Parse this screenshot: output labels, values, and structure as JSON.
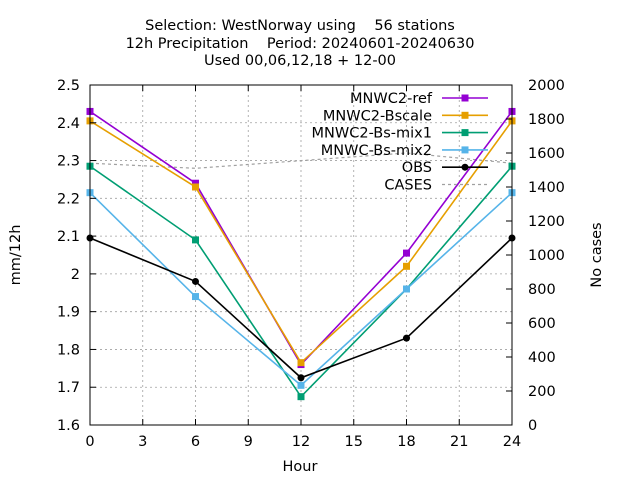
{
  "title": {
    "line1": "Selection: WestNorway using    56 stations",
    "line2": "12h Precipitation    Period: 20240601-20240630",
    "line3": "Used 00,06,12,18 + 12-00"
  },
  "chart_data": {
    "type": "line",
    "xlabel": "Hour",
    "ylabel": "mm/12h",
    "y2label": "No cases",
    "xlim": [
      0,
      24
    ],
    "ylim": [
      1.6,
      2.5
    ],
    "y2lim": [
      0,
      2000
    ],
    "xticks": [
      "0",
      "3",
      "6",
      "9",
      "12",
      "15",
      "18",
      "21",
      "24"
    ],
    "yticks": [
      "1.6",
      "1.7",
      "1.8",
      "1.9",
      "2",
      "2.1",
      "2.2",
      "2.3",
      "2.4",
      "2.5"
    ],
    "y2ticks": [
      "0",
      "200",
      "400",
      "600",
      "800",
      "1000",
      "1200",
      "1400",
      "1600",
      "1800",
      "2000"
    ],
    "grid": true,
    "legend_position": "top-right",
    "x": [
      0,
      6,
      12,
      18,
      24
    ],
    "series": [
      {
        "name": "MNWC2-ref",
        "color": "#9400d3",
        "marker": "filled-square",
        "axis": "y1",
        "values": [
          2.43,
          2.24,
          1.76,
          2.055,
          2.43
        ]
      },
      {
        "name": "MNWC2-Bscale",
        "color": "#e69f00",
        "marker": "filled-square",
        "axis": "y1",
        "values": [
          2.405,
          2.23,
          1.765,
          2.02,
          2.405
        ]
      },
      {
        "name": "MNWC2-Bs-mix1",
        "color": "#009e73",
        "marker": "filled-square",
        "axis": "y1",
        "values": [
          2.285,
          2.09,
          1.675,
          1.96,
          2.285
        ]
      },
      {
        "name": "MNWC-Bs-mix2",
        "color": "#56b4e9",
        "marker": "filled-square",
        "axis": "y1",
        "values": [
          2.215,
          1.94,
          1.705,
          1.96,
          2.215
        ]
      },
      {
        "name": "OBS",
        "color": "#000000",
        "marker": "filled-circle",
        "axis": "y1",
        "values": [
          2.095,
          1.98,
          1.725,
          1.83,
          2.095
        ]
      },
      {
        "name": "CASES",
        "color": "#a0a0a0",
        "marker": "none",
        "dash": true,
        "axis": "y2",
        "values": [
          1540,
          1510,
          1555,
          1600,
          1540
        ]
      }
    ]
  }
}
